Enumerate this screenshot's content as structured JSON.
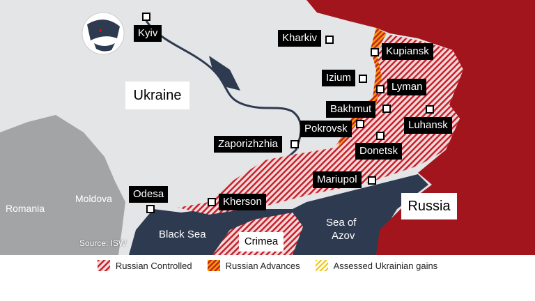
{
  "colors": {
    "russia": "#a3151d",
    "sea": "#2e3a50",
    "land": "#e3e5e7",
    "neighbors": "#a2a4a6",
    "controlled": "#c8202a",
    "advances": "#e07b00",
    "ukr_gains": "#f2c300"
  },
  "countries": {
    "ukraine": "Ukraine",
    "russia": "Russia",
    "romania": "Romania",
    "moldova": "Moldova"
  },
  "regions": {
    "crimea": "Crimea"
  },
  "seas": {
    "black_sea": "Black Sea",
    "azov_line1": "Sea of",
    "azov_line2": "Azov"
  },
  "cities": {
    "kyiv": "Kyiv",
    "kharkiv": "Kharkiv",
    "kupiansk": "Kupiansk",
    "izium": "Izium",
    "lyman": "Lyman",
    "bakhmut": "Bakhmut",
    "luhansk": "Luhansk",
    "pokrovsk": "Pokrovsk",
    "donetsk": "Donetsk",
    "zaporizhzhia": "Zaporizhzhia",
    "mariupol": "Mariupol",
    "kherson": "Kherson",
    "odesa": "Odesa"
  },
  "source": "Source: ISW",
  "legend": [
    {
      "label": "Russian Controlled",
      "icon": "hatch-red"
    },
    {
      "label": "Russian Advances",
      "icon": "hatch-orange"
    },
    {
      "label": "Assessed Ukrainian gains",
      "icon": "hatch-yellow"
    }
  ]
}
